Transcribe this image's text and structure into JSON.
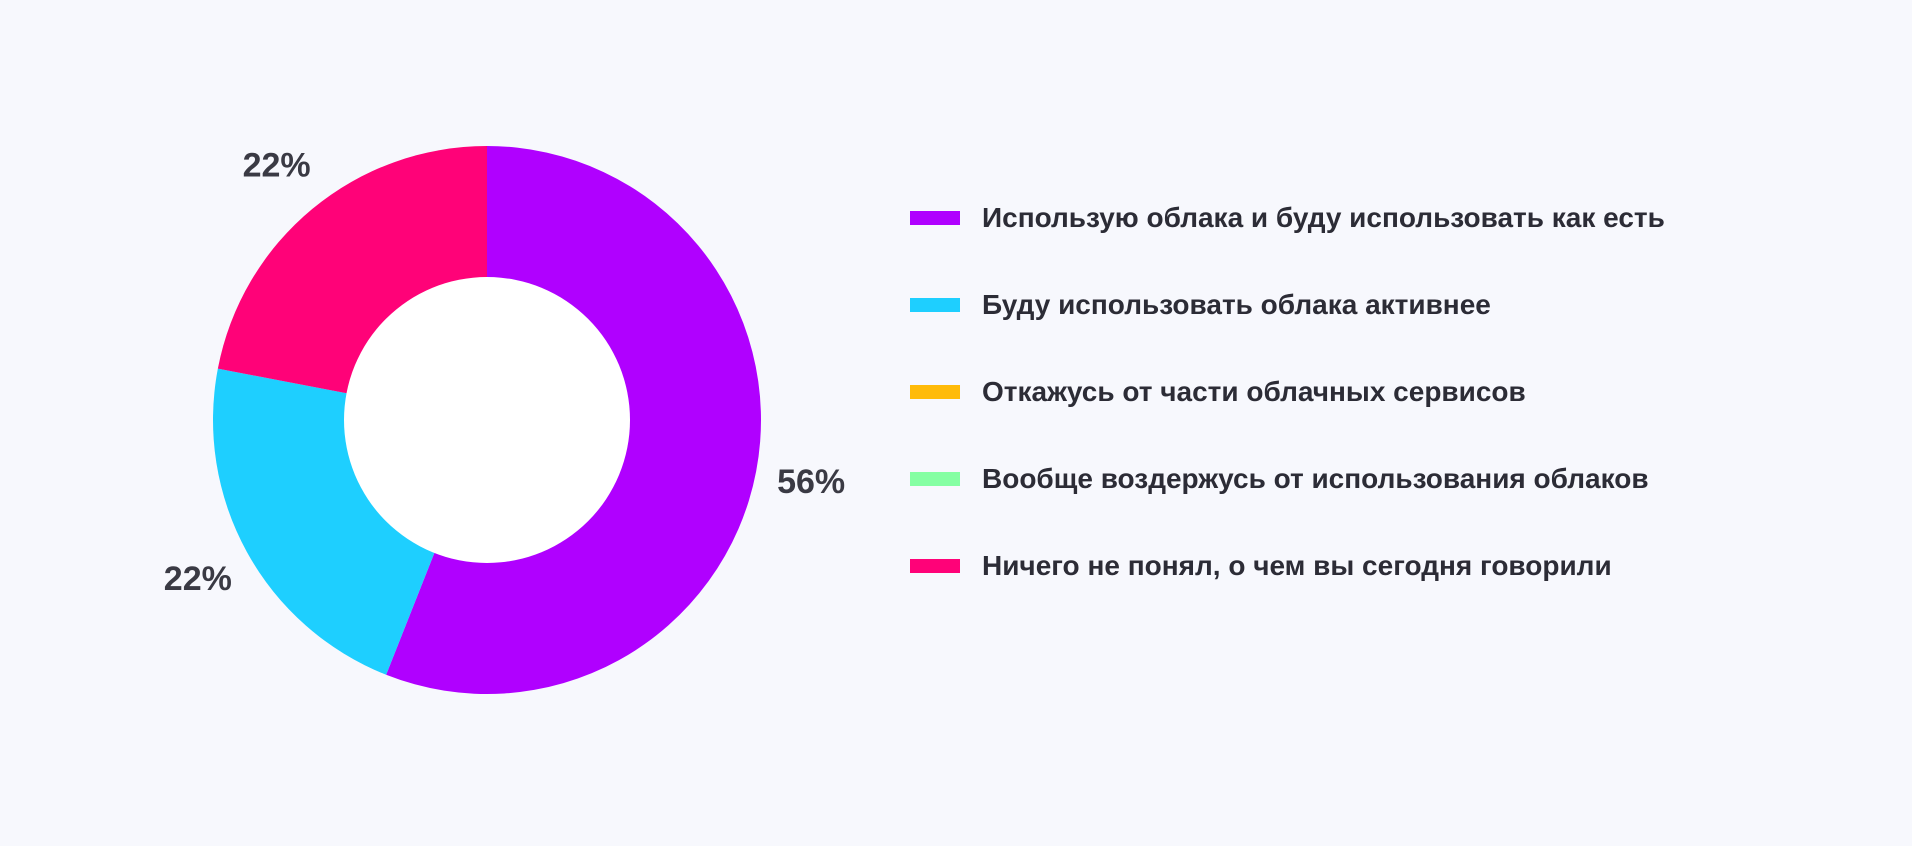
{
  "chart_data": {
    "type": "pie",
    "variant": "donut",
    "title": "",
    "legend_position": "right",
    "series": [
      {
        "name": "Использую облака и буду использовать как есть",
        "value": 56,
        "label": "56%",
        "color": "#b000ff"
      },
      {
        "name": "Буду использовать облака активнее",
        "value": 22,
        "label": "22%",
        "color": "#1ecfff"
      },
      {
        "name": "Откажусь от части облачных сервисов",
        "value": 0,
        "label": "",
        "color": "#ffbb0a"
      },
      {
        "name": "Вообще воздержусь от использования облаков",
        "value": 0,
        "label": "",
        "color": "#85ffa3"
      },
      {
        "name": "Ничего не понял, о чем вы сегодня говорили",
        "value": 22,
        "label": "22%",
        "color": "#ff0278"
      }
    ]
  }
}
